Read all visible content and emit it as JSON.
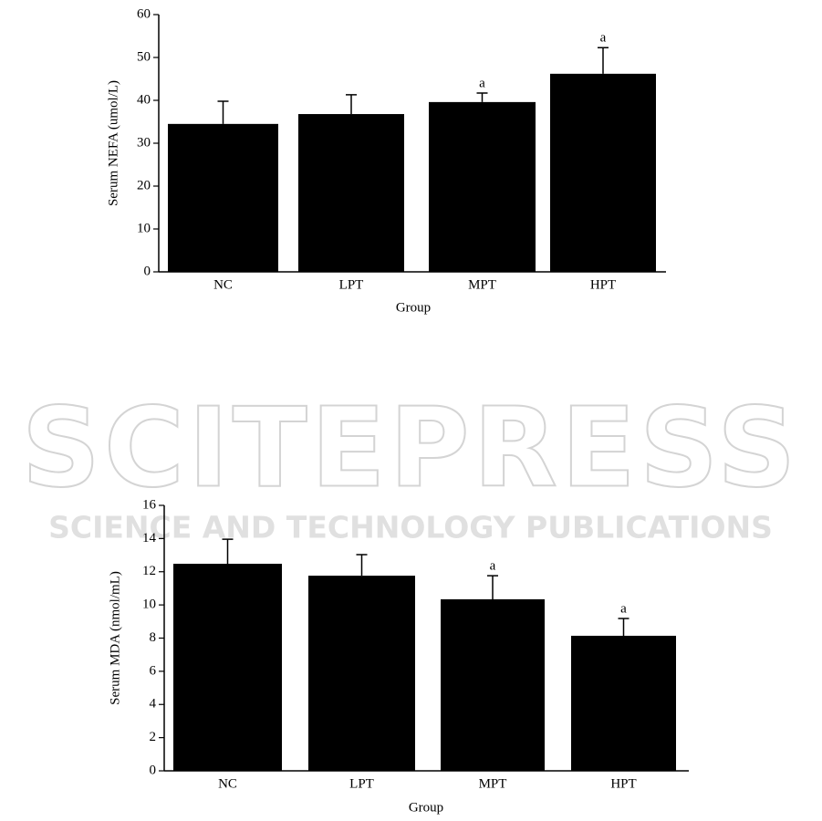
{
  "watermark_title": "SCITEPRESS",
  "watermark_subtitle": "SCIENCE AND TECHNOLOGY PUBLICATIONS",
  "chart_data": [
    {
      "type": "bar",
      "xlabel": "Group",
      "ylabel": "Serum NEFA (umol/L)",
      "categories": [
        "NC",
        "LPT",
        "MPT",
        "HPT"
      ],
      "values": [
        34.5,
        36.8,
        39.6,
        46.2
      ],
      "errors": [
        5.3,
        4.5,
        2.1,
        6.1
      ],
      "annotations": [
        null,
        null,
        "a",
        "a"
      ],
      "color": "#000000",
      "ylim": [
        0,
        60
      ],
      "yticks": [
        0,
        10,
        20,
        30,
        40,
        50,
        60
      ]
    },
    {
      "type": "bar",
      "xlabel": "Group",
      "ylabel": "Serum MDA (nmol/mL)",
      "categories": [
        "NC",
        "LPT",
        "MPT",
        "HPT"
      ],
      "values": [
        12.48,
        11.76,
        10.34,
        8.14
      ],
      "errors": [
        1.48,
        1.27,
        1.42,
        1.04
      ],
      "annotations": [
        null,
        null,
        "a",
        "a"
      ],
      "color": "#000000",
      "ylim": [
        0,
        16
      ],
      "yticks": [
        0,
        2,
        4,
        6,
        8,
        10,
        12,
        14,
        16
      ]
    }
  ]
}
